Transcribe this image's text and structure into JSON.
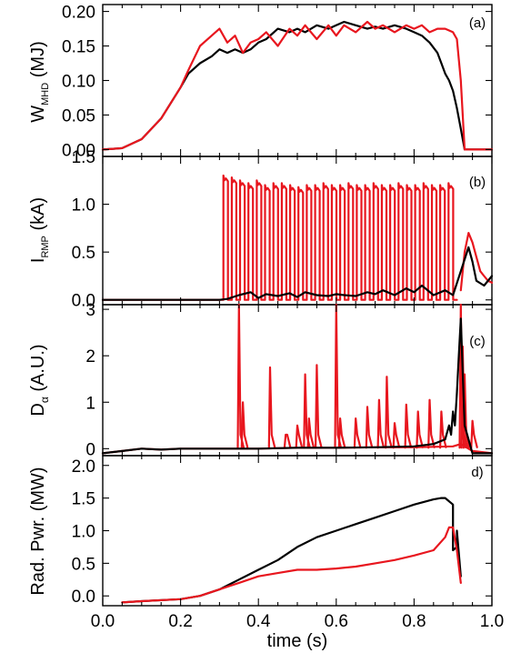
{
  "chart_data": {
    "type": "line",
    "x_axis": {
      "label": "time (s)",
      "range": [
        0.0,
        1.0
      ],
      "ticks": [
        "0.0",
        "0.2",
        "0.4",
        "0.6",
        "0.8",
        "1.0"
      ],
      "tick_values": [
        0.0,
        0.2,
        0.4,
        0.6,
        0.8,
        1.0
      ]
    },
    "colors": {
      "black_series": "#000000",
      "red_series": "#e8161e"
    },
    "panels": [
      {
        "tag": "(a)",
        "ylabel": "W",
        "ylabel_sub": "MHD",
        "ylabel_suffix": " (MJ)",
        "ylim": [
          -0.01,
          0.21
        ],
        "yticks": [
          "0.00",
          "0.05",
          "0.10",
          "0.15",
          "0.20"
        ],
        "ytick_values": [
          0.0,
          0.05,
          0.1,
          0.15,
          0.2
        ],
        "series": [
          {
            "color": "#000000",
            "x": [
              0.0,
              0.05,
              0.1,
              0.15,
              0.2,
              0.22,
              0.25,
              0.28,
              0.3,
              0.32,
              0.34,
              0.36,
              0.38,
              0.4,
              0.42,
              0.45,
              0.48,
              0.5,
              0.52,
              0.55,
              0.58,
              0.6,
              0.62,
              0.65,
              0.68,
              0.7,
              0.72,
              0.75,
              0.78,
              0.8,
              0.82,
              0.84,
              0.86,
              0.87,
              0.88,
              0.89,
              0.9,
              0.91,
              0.92,
              0.93,
              0.95,
              1.0
            ],
            "y": [
              0.0,
              0.002,
              0.015,
              0.045,
              0.09,
              0.11,
              0.125,
              0.135,
              0.145,
              0.14,
              0.145,
              0.14,
              0.145,
              0.155,
              0.16,
              0.175,
              0.17,
              0.175,
              0.17,
              0.18,
              0.175,
              0.18,
              0.185,
              0.18,
              0.175,
              0.178,
              0.175,
              0.18,
              0.175,
              0.17,
              0.165,
              0.155,
              0.14,
              0.125,
              0.11,
              0.1,
              0.085,
              0.06,
              0.03,
              0.0,
              0.0,
              0.0
            ]
          },
          {
            "color": "#e8161e",
            "x": [
              0.0,
              0.05,
              0.1,
              0.15,
              0.2,
              0.22,
              0.25,
              0.28,
              0.3,
              0.32,
              0.34,
              0.36,
              0.38,
              0.4,
              0.42,
              0.45,
              0.48,
              0.5,
              0.52,
              0.55,
              0.58,
              0.6,
              0.62,
              0.65,
              0.68,
              0.7,
              0.72,
              0.75,
              0.78,
              0.8,
              0.82,
              0.84,
              0.86,
              0.88,
              0.9,
              0.91,
              0.92,
              0.93,
              0.95,
              1.0
            ],
            "y": [
              0.0,
              0.002,
              0.015,
              0.045,
              0.09,
              0.115,
              0.15,
              0.165,
              0.175,
              0.155,
              0.165,
              0.14,
              0.155,
              0.16,
              0.17,
              0.15,
              0.175,
              0.165,
              0.18,
              0.16,
              0.18,
              0.165,
              0.18,
              0.17,
              0.185,
              0.175,
              0.18,
              0.17,
              0.18,
              0.175,
              0.18,
              0.17,
              0.175,
              0.175,
              0.17,
              0.16,
              0.1,
              0.0,
              0.0,
              0.0
            ]
          }
        ]
      },
      {
        "tag": "(b)",
        "ylabel": "I",
        "ylabel_sub": "RMP",
        "ylabel_suffix": " (kA)",
        "ylim": [
          -0.05,
          1.5
        ],
        "yticks": [
          "0.0",
          "0.5",
          "1.0",
          "1.5"
        ],
        "ytick_values": [
          0.0,
          0.5,
          1.0,
          1.5
        ],
        "red_pulses": {
          "t_start": 0.31,
          "t_end": 0.91,
          "count": 28,
          "high": [
            1.3,
            1.28,
            1.25,
            1.22,
            1.25,
            1.2,
            1.22,
            1.22,
            1.2,
            1.18,
            1.2,
            1.2,
            1.22,
            1.2,
            1.2,
            1.22,
            1.2,
            1.2,
            1.22,
            1.2,
            1.2,
            1.22,
            1.2,
            1.2,
            1.22,
            1.2,
            1.2,
            1.22
          ],
          "low": 0.0
        },
        "red_tail": {
          "x": [
            0.92,
            0.93,
            0.94,
            0.95,
            0.96,
            0.97,
            0.98,
            0.99,
            1.0
          ],
          "y": [
            0.1,
            0.5,
            0.7,
            0.6,
            0.45,
            0.3,
            0.25,
            0.2,
            0.18
          ]
        },
        "series": [
          {
            "color": "#000000",
            "x": [
              0.0,
              0.3,
              0.32,
              0.35,
              0.38,
              0.4,
              0.42,
              0.45,
              0.48,
              0.5,
              0.52,
              0.55,
              0.58,
              0.6,
              0.62,
              0.65,
              0.68,
              0.7,
              0.72,
              0.75,
              0.78,
              0.8,
              0.82,
              0.85,
              0.88,
              0.9,
              0.92,
              0.94,
              0.95,
              0.96,
              0.98,
              1.0
            ],
            "y": [
              0.0,
              0.0,
              0.01,
              0.05,
              0.08,
              0.02,
              0.06,
              0.04,
              0.07,
              0.03,
              0.08,
              0.05,
              0.04,
              0.06,
              0.05,
              0.04,
              0.08,
              0.06,
              0.1,
              0.05,
              0.12,
              0.08,
              0.15,
              0.05,
              0.1,
              0.05,
              0.3,
              0.55,
              0.4,
              0.2,
              0.15,
              0.25
            ]
          }
        ]
      },
      {
        "tag": "(c)",
        "ylabel": "D",
        "ylabel_sub": "α",
        "ylabel_suffix": " (A.U.)",
        "ylim": [
          -0.15,
          3.1
        ],
        "yticks": [
          "0",
          "1",
          "2",
          "3"
        ],
        "ytick_values": [
          0,
          1,
          2,
          3
        ],
        "red_baseline": {
          "x": [
            0.0,
            0.05,
            0.1,
            0.15,
            0.2,
            0.3,
            0.4,
            0.5,
            0.6,
            0.7,
            0.8,
            0.9,
            0.92,
            0.95,
            1.0
          ],
          "y": [
            -0.1,
            -0.05,
            0.0,
            -0.02,
            0.0,
            0.0,
            0.0,
            0.02,
            0.02,
            0.03,
            0.03,
            0.05,
            0.1,
            -0.05,
            -0.1
          ]
        },
        "red_spikes": {
          "t": [
            0.35,
            0.36,
            0.43,
            0.47,
            0.5,
            0.52,
            0.53,
            0.55,
            0.6,
            0.61,
            0.65,
            0.68,
            0.71,
            0.73,
            0.75,
            0.78,
            0.81,
            0.84,
            0.87,
            0.92,
            0.925,
            0.93,
            0.95
          ],
          "h": [
            3.1,
            1.0,
            1.75,
            0.3,
            0.5,
            1.6,
            0.65,
            1.8,
            3.1,
            0.65,
            0.65,
            0.9,
            1.05,
            1.55,
            0.55,
            0.95,
            0.8,
            1.05,
            0.8,
            3.1,
            2.2,
            1.6,
            0.6
          ]
        },
        "series": [
          {
            "color": "#000000",
            "x": [
              0.0,
              0.05,
              0.1,
              0.15,
              0.2,
              0.3,
              0.4,
              0.5,
              0.6,
              0.7,
              0.8,
              0.85,
              0.88,
              0.89,
              0.895,
              0.9,
              0.905,
              0.91,
              0.915,
              0.92,
              0.93,
              0.95,
              1.0
            ],
            "y": [
              -0.1,
              -0.05,
              0.0,
              -0.02,
              0.0,
              0.0,
              0.0,
              0.02,
              0.02,
              0.03,
              0.05,
              0.1,
              0.2,
              0.5,
              0.3,
              0.8,
              0.5,
              1.2,
              2.0,
              2.8,
              0.5,
              -0.1,
              -0.1
            ]
          }
        ]
      },
      {
        "tag": "d)",
        "ylabel": "Rad. Pwr. (MW)",
        "ylabel_sub": "",
        "ylabel_suffix": "",
        "ylim": [
          -0.15,
          2.15
        ],
        "yticks": [
          "0.0",
          "0.5",
          "1.0",
          "1.5",
          "2.0"
        ],
        "ytick_values": [
          0.0,
          0.5,
          1.0,
          1.5,
          2.0
        ],
        "series": [
          {
            "color": "#000000",
            "x": [
              0.05,
              0.1,
              0.2,
              0.25,
              0.3,
              0.35,
              0.4,
              0.45,
              0.5,
              0.55,
              0.6,
              0.65,
              0.7,
              0.75,
              0.8,
              0.85,
              0.87,
              0.88,
              0.9,
              0.9,
              0.91,
              0.91,
              0.92
            ],
            "y": [
              -0.1,
              -0.08,
              -0.05,
              0.0,
              0.1,
              0.25,
              0.4,
              0.55,
              0.75,
              0.9,
              1.0,
              1.1,
              1.2,
              1.3,
              1.4,
              1.48,
              1.5,
              1.5,
              1.4,
              0.7,
              0.75,
              1.0,
              0.3
            ]
          },
          {
            "color": "#e8161e",
            "x": [
              0.05,
              0.1,
              0.2,
              0.25,
              0.3,
              0.35,
              0.4,
              0.45,
              0.5,
              0.55,
              0.6,
              0.65,
              0.7,
              0.75,
              0.8,
              0.85,
              0.88,
              0.89,
              0.9,
              0.91,
              0.92
            ],
            "y": [
              -0.1,
              -0.08,
              -0.05,
              0.0,
              0.1,
              0.2,
              0.3,
              0.35,
              0.4,
              0.4,
              0.42,
              0.45,
              0.5,
              0.55,
              0.62,
              0.7,
              0.9,
              1.05,
              1.05,
              0.7,
              0.2
            ]
          }
        ]
      }
    ]
  }
}
